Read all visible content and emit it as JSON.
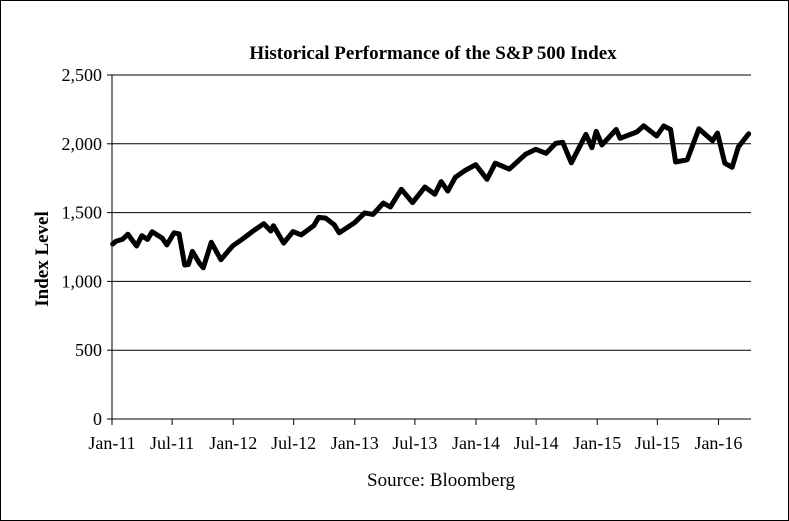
{
  "chart_data": {
    "type": "line",
    "title": "Historical Performance of the S&P 500 Index",
    "xlabel": "",
    "ylabel": "Index Level",
    "source": "Source: Bloomberg",
    "ylim": [
      0,
      2500
    ],
    "yticks": [
      {
        "value": 0,
        "label": "0"
      },
      {
        "value": 500,
        "label": "500"
      },
      {
        "value": 1000,
        "label": "1,000"
      },
      {
        "value": 1500,
        "label": "1,500"
      },
      {
        "value": 2000,
        "label": "2,000"
      },
      {
        "value": 2500,
        "label": "2,500"
      }
    ],
    "xlim": [
      "2011-01-01",
      "2016-04-08"
    ],
    "xticks": [
      {
        "date": "2011-01-01",
        "label": "Jan-11"
      },
      {
        "date": "2011-07-01",
        "label": "Jul-11"
      },
      {
        "date": "2012-01-01",
        "label": "Jan-12"
      },
      {
        "date": "2012-07-01",
        "label": "Jul-12"
      },
      {
        "date": "2013-01-01",
        "label": "Jan-13"
      },
      {
        "date": "2013-07-01",
        "label": "Jul-13"
      },
      {
        "date": "2014-01-01",
        "label": "Jan-14"
      },
      {
        "date": "2014-07-01",
        "label": "Jul-14"
      },
      {
        "date": "2015-01-01",
        "label": "Jan-15"
      },
      {
        "date": "2015-07-01",
        "label": "Jul-15"
      },
      {
        "date": "2016-01-01",
        "label": "Jan-16"
      }
    ],
    "grid": "horizontal",
    "series": [
      {
        "color": "#000000",
        "points": [
          [
            "2011-01-03",
            1271
          ],
          [
            "2011-01-14",
            1293
          ],
          [
            "2011-02-01",
            1305
          ],
          [
            "2011-02-18",
            1343
          ],
          [
            "2011-03-01",
            1306
          ],
          [
            "2011-03-16",
            1257
          ],
          [
            "2011-04-01",
            1332
          ],
          [
            "2011-04-18",
            1305
          ],
          [
            "2011-05-02",
            1361
          ],
          [
            "2011-05-20",
            1333
          ],
          [
            "2011-06-01",
            1315
          ],
          [
            "2011-06-15",
            1265
          ],
          [
            "2011-07-07",
            1353
          ],
          [
            "2011-07-22",
            1345
          ],
          [
            "2011-08-08",
            1119
          ],
          [
            "2011-08-19",
            1123
          ],
          [
            "2011-08-31",
            1218
          ],
          [
            "2011-09-22",
            1129
          ],
          [
            "2011-10-03",
            1099
          ],
          [
            "2011-10-27",
            1284
          ],
          [
            "2011-11-25",
            1158
          ],
          [
            "2011-12-15",
            1215
          ],
          [
            "2011-12-30",
            1257
          ],
          [
            "2012-01-31",
            1312
          ],
          [
            "2012-02-29",
            1365
          ],
          [
            "2012-04-02",
            1419
          ],
          [
            "2012-04-23",
            1366
          ],
          [
            "2012-05-01",
            1405
          ],
          [
            "2012-06-01",
            1278
          ],
          [
            "2012-06-29",
            1362
          ],
          [
            "2012-07-24",
            1338
          ],
          [
            "2012-08-31",
            1406
          ],
          [
            "2012-09-14",
            1465
          ],
          [
            "2012-10-05",
            1460
          ],
          [
            "2012-10-31",
            1412
          ],
          [
            "2012-11-15",
            1353
          ],
          [
            "2012-12-31",
            1426
          ],
          [
            "2013-01-31",
            1498
          ],
          [
            "2013-02-25",
            1487
          ],
          [
            "2013-03-28",
            1569
          ],
          [
            "2013-04-18",
            1541
          ],
          [
            "2013-05-21",
            1669
          ],
          [
            "2013-06-24",
            1573
          ],
          [
            "2013-07-31",
            1686
          ],
          [
            "2013-08-30",
            1633
          ],
          [
            "2013-09-18",
            1725
          ],
          [
            "2013-10-08",
            1656
          ],
          [
            "2013-10-31",
            1757
          ],
          [
            "2013-11-29",
            1806
          ],
          [
            "2013-12-31",
            1848
          ],
          [
            "2014-02-03",
            1742
          ],
          [
            "2014-02-28",
            1859
          ],
          [
            "2014-04-11",
            1816
          ],
          [
            "2014-05-30",
            1924
          ],
          [
            "2014-06-30",
            1960
          ],
          [
            "2014-07-31",
            1931
          ],
          [
            "2014-08-29",
            2003
          ],
          [
            "2014-09-19",
            2011
          ],
          [
            "2014-10-15",
            1862
          ],
          [
            "2014-11-28",
            2068
          ],
          [
            "2014-12-16",
            1972
          ],
          [
            "2014-12-29",
            2090
          ],
          [
            "2015-01-15",
            1992
          ],
          [
            "2015-02-27",
            2104
          ],
          [
            "2015-03-11",
            2040
          ],
          [
            "2015-04-30",
            2086
          ],
          [
            "2015-05-21",
            2131
          ],
          [
            "2015-06-29",
            2057
          ],
          [
            "2015-07-20",
            2129
          ],
          [
            "2015-08-10",
            2104
          ],
          [
            "2015-08-25",
            1868
          ],
          [
            "2015-09-29",
            1884
          ],
          [
            "2015-11-03",
            2109
          ],
          [
            "2015-12-14",
            2022
          ],
          [
            "2015-12-29",
            2078
          ],
          [
            "2016-01-20",
            1859
          ],
          [
            "2016-02-11",
            1829
          ],
          [
            "2016-03-01",
            1978
          ],
          [
            "2016-04-01",
            2073
          ]
        ]
      }
    ]
  }
}
